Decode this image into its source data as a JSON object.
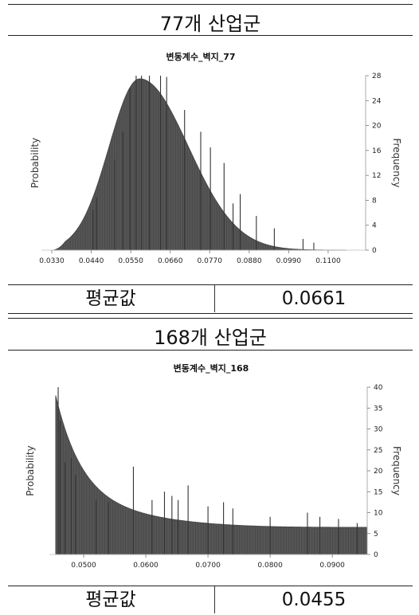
{
  "panels": [
    {
      "header": "77개 산업군",
      "mean_label": "평균값",
      "mean_value": "0.0661"
    },
    {
      "header": "168개 산업군",
      "mean_label": "평균값",
      "mean_value": "0.0455"
    }
  ],
  "chart_data": [
    {
      "type": "bar",
      "title": "변동계수_벽지_77",
      "ylabel_left": "Probability",
      "ylabel_right": "Frequency",
      "x_ticks": [
        "0.0330",
        "0.0440",
        "0.0550",
        "0.0660",
        "0.0770",
        "0.0880",
        "0.0990",
        "0.1100"
      ],
      "x_range": [
        0.031,
        0.118
      ],
      "y_right_ticks": [
        "0",
        "4",
        "8",
        "12",
        "16",
        "20",
        "24",
        "28"
      ],
      "y_range": [
        0,
        28
      ],
      "curve": {
        "shape": "lognormal-like",
        "mode": 0.0575,
        "peak": 27.5,
        "start": 0.0335,
        "end": 0.115
      },
      "spikes": [
        {
          "x": 0.0445,
          "y": 6.5
        },
        {
          "x": 0.0455,
          "y": 8.5
        },
        {
          "x": 0.0505,
          "y": 14.5
        },
        {
          "x": 0.0528,
          "y": 19
        },
        {
          "x": 0.0548,
          "y": 26
        },
        {
          "x": 0.0565,
          "y": 28
        },
        {
          "x": 0.058,
          "y": 28
        },
        {
          "x": 0.0602,
          "y": 28
        },
        {
          "x": 0.0633,
          "y": 28
        },
        {
          "x": 0.065,
          "y": 27.8
        },
        {
          "x": 0.07,
          "y": 22.5
        },
        {
          "x": 0.0745,
          "y": 19
        },
        {
          "x": 0.0772,
          "y": 16.5
        },
        {
          "x": 0.081,
          "y": 14
        },
        {
          "x": 0.0835,
          "y": 7.5
        },
        {
          "x": 0.0855,
          "y": 9
        },
        {
          "x": 0.09,
          "y": 5.5
        },
        {
          "x": 0.095,
          "y": 3.5
        },
        {
          "x": 0.103,
          "y": 1.8
        },
        {
          "x": 0.106,
          "y": 1.2
        }
      ],
      "grid": false
    },
    {
      "type": "bar",
      "title": "변동계수_벽지_168",
      "ylabel_left": "Probability",
      "ylabel_right": "Frequency",
      "x_ticks": [
        "0.0500",
        "0.0600",
        "0.0700",
        "0.0800",
        "0.0900"
      ],
      "x_range": [
        0.045,
        0.096
      ],
      "y_right_ticks": [
        "0",
        "5",
        "10",
        "15",
        "20",
        "25",
        "30",
        "35",
        "40"
      ],
      "y_range": [
        0,
        40
      ],
      "curve": {
        "shape": "decaying",
        "start": 0.0455,
        "end": 0.0955,
        "start_value": 38,
        "end_value": 6.5
      },
      "spikes": [
        {
          "x": 0.0459,
          "y": 40
        },
        {
          "x": 0.0462,
          "y": 32
        },
        {
          "x": 0.047,
          "y": 22
        },
        {
          "x": 0.048,
          "y": 23
        },
        {
          "x": 0.0487,
          "y": 19
        },
        {
          "x": 0.052,
          "y": 13
        },
        {
          "x": 0.054,
          "y": 12.5
        },
        {
          "x": 0.058,
          "y": 21
        },
        {
          "x": 0.061,
          "y": 13
        },
        {
          "x": 0.063,
          "y": 15
        },
        {
          "x": 0.0642,
          "y": 14
        },
        {
          "x": 0.0652,
          "y": 13
        },
        {
          "x": 0.0668,
          "y": 16.5
        },
        {
          "x": 0.07,
          "y": 11.5
        },
        {
          "x": 0.0725,
          "y": 12.5
        },
        {
          "x": 0.074,
          "y": 11
        },
        {
          "x": 0.08,
          "y": 9
        },
        {
          "x": 0.086,
          "y": 10
        },
        {
          "x": 0.088,
          "y": 9
        },
        {
          "x": 0.091,
          "y": 8.5
        },
        {
          "x": 0.094,
          "y": 7.5
        }
      ],
      "grid": false
    }
  ]
}
